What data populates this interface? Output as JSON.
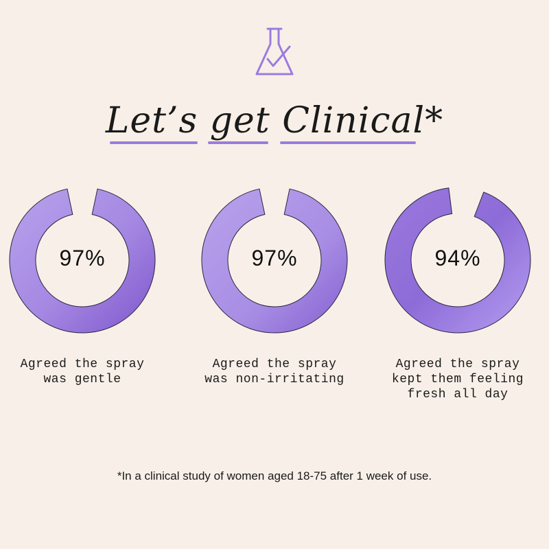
{
  "title": "Let’s get Clinical*",
  "icon": "beaker-check-icon",
  "accent_color": "#9b7be0",
  "footnote": "*In a clinical study of women aged 18-75 after 1 week of use.",
  "chart_data": [
    {
      "type": "pie",
      "value": 97,
      "label": "97%",
      "caption": "Agreed the spray\nwas gentle"
    },
    {
      "type": "pie",
      "value": 97,
      "label": "97%",
      "caption": "Agreed the spray\nwas non-irritating"
    },
    {
      "type": "pie",
      "value": 94,
      "label": "94%",
      "caption": "Agreed the spray\nkept them feeling\nfresh all day"
    }
  ]
}
